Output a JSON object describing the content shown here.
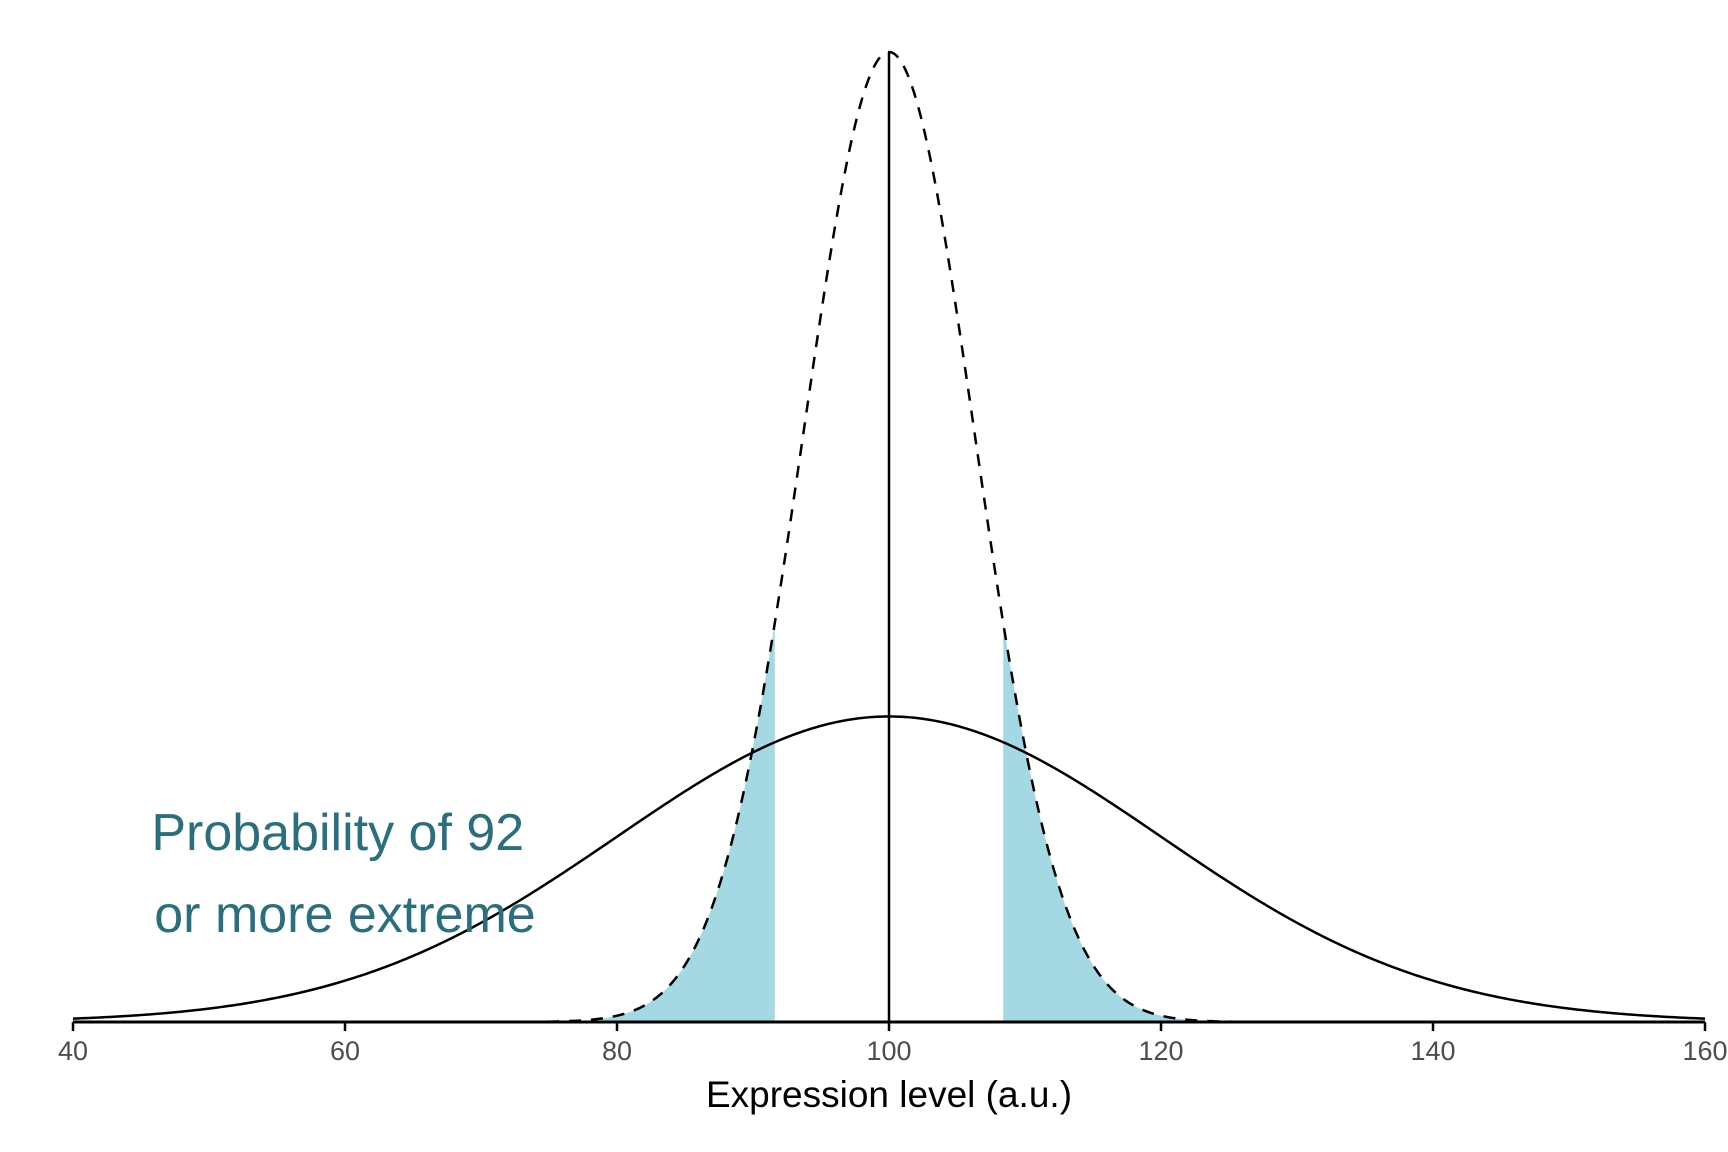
{
  "chart_data": {
    "type": "line",
    "xlabel": "Expression level (a.u.)",
    "ylabel": "",
    "xlim": [
      40,
      160
    ],
    "x_ticks": [
      "40",
      "60",
      "80",
      "100",
      "120",
      "140",
      "160"
    ],
    "grid": false,
    "legend": "none",
    "series": [
      {
        "style": "solid",
        "distribution": "normal",
        "mean": 100,
        "sd": 20,
        "peak_relative_height": 0.315
      },
      {
        "style": "dashed",
        "distribution": "normal",
        "mean": 100,
        "sd": 6.3,
        "peak_relative_height": 1.0
      }
    ],
    "mean_line": {
      "x": 100
    },
    "shaded_regions": [
      {
        "from": 78,
        "to": 91.6,
        "under": "dashed"
      },
      {
        "from": 108.4,
        "to": 122,
        "under": "dashed"
      }
    ],
    "annotation": {
      "lines": [
        "Probability of 92",
        "or more extreme"
      ],
      "color": "#2a6f7e"
    },
    "colors": {
      "shade": "#a4d9e3",
      "line": "#000000",
      "tick_text": "#4d4d4d"
    }
  }
}
